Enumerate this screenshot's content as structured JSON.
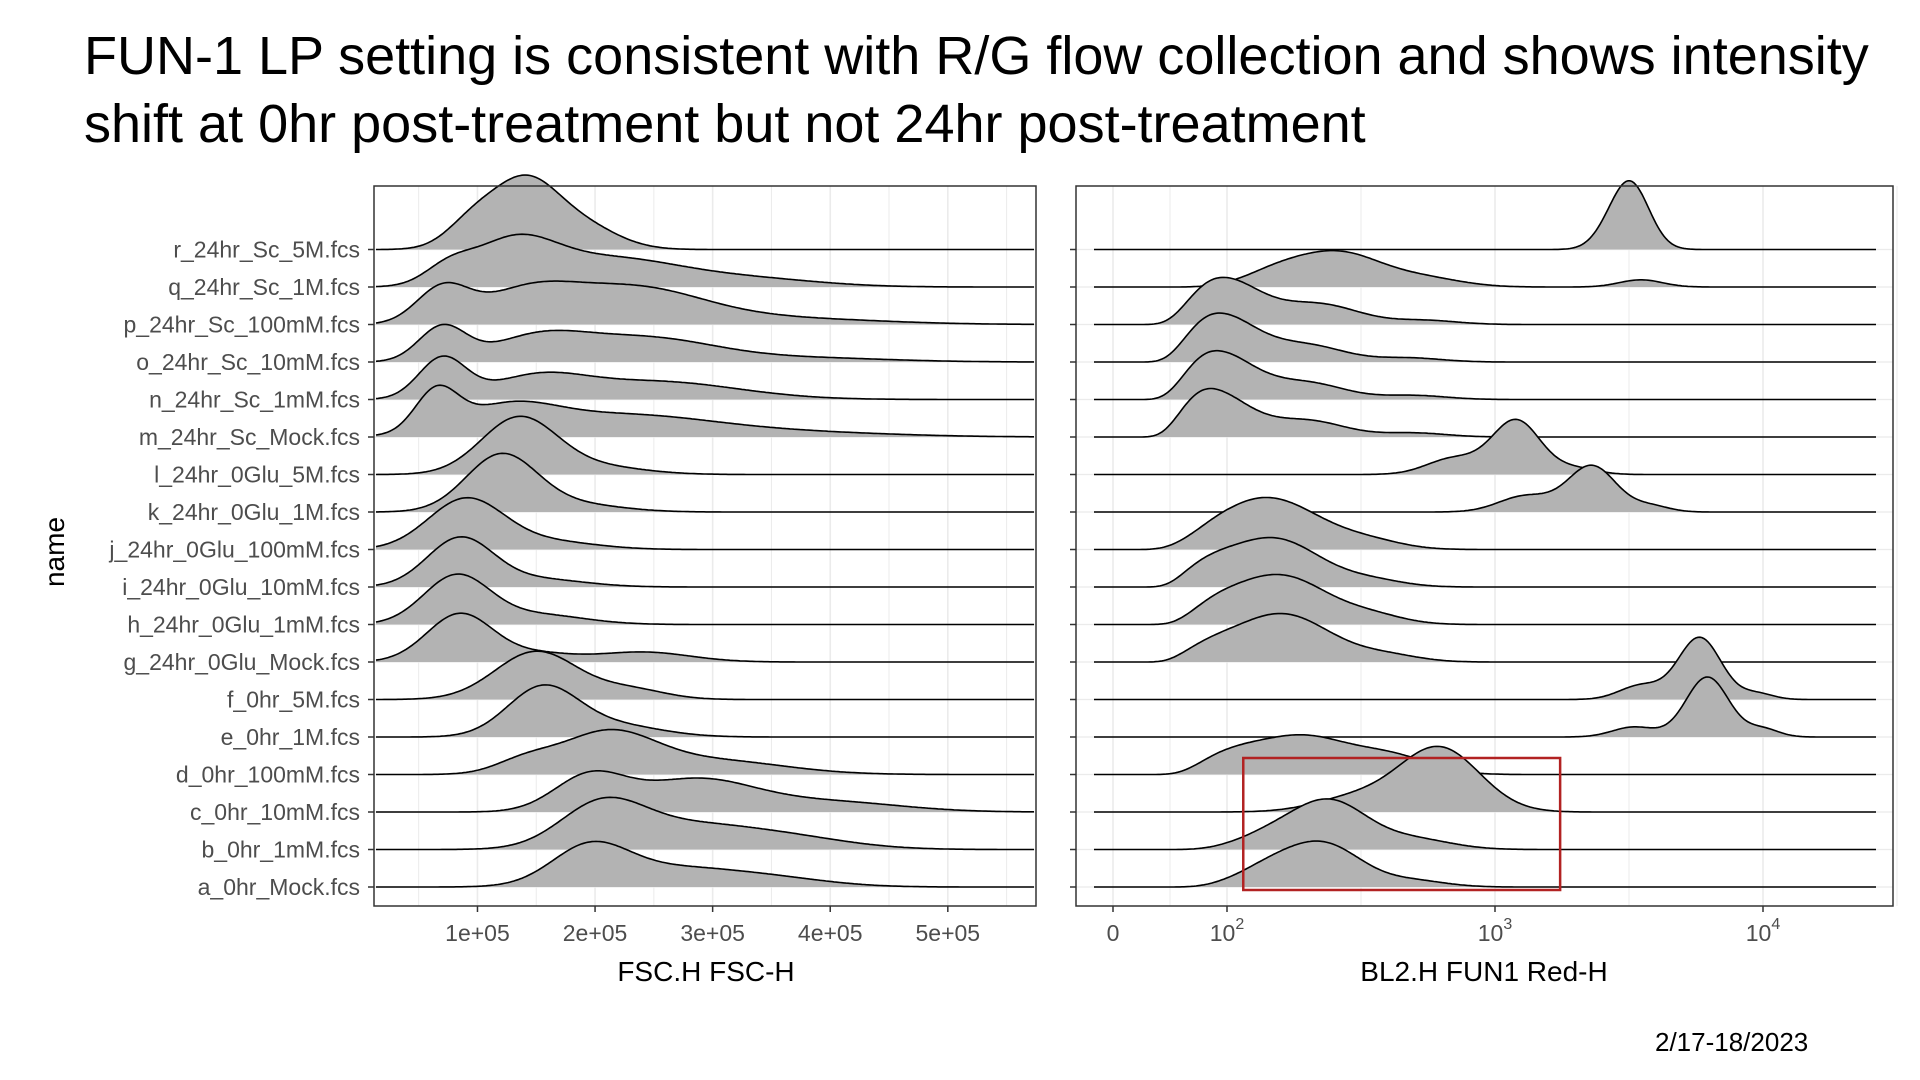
{
  "slide": {
    "title": "FUN-1 LP setting is consistent with R/G flow collection and shows intensity shift at 0hr post-treatment but not 24hr post-treatment",
    "date": "2/17-18/2023"
  },
  "colors": {
    "ridge_fill": "#b3b3b3",
    "ridge_line": "#000000",
    "grid": "#ebebeb",
    "panel_border": "#333333",
    "highlight_box": "#b22222"
  },
  "chart_data": [
    {
      "type": "ridgeline",
      "xlabel": "FSC.H FSC-H",
      "ylabel": "name",
      "x_ticks": [
        "1e+05",
        "2e+05",
        "3e+05",
        "4e+05",
        "5e+05"
      ],
      "x_tick_values": [
        100000,
        200000,
        300000,
        400000,
        500000
      ],
      "xlim": [
        12000,
        575000
      ],
      "categories": [
        "a_0hr_Mock.fcs",
        "b_0hr_1mM.fcs",
        "c_0hr_10mM.fcs",
        "d_0hr_100mM.fcs",
        "e_0hr_1M.fcs",
        "f_0hr_5M.fcs",
        "g_24hr_0Glu_Mock.fcs",
        "h_24hr_0Glu_1mM.fcs",
        "i_24hr_0Glu_10mM.fcs",
        "j_24hr_0Glu_100mM.fcs",
        "k_24hr_0Glu_1M.fcs",
        "l_24hr_0Glu_5M.fcs",
        "m_24hr_Sc_Mock.fcs",
        "n_24hr_Sc_1mM.fcs",
        "o_24hr_Sc_10mM.fcs",
        "p_24hr_Sc_100mM.fcs",
        "q_24hr_Sc_1M.fcs",
        "r_24hr_Sc_5M.fcs"
      ],
      "series": [
        {
          "peaks": [
            [
              195000,
              32000,
              0.9
            ],
            [
              260000,
              55000,
              0.45
            ],
            [
              350000,
              50000,
              0.2
            ]
          ]
        },
        {
          "peaks": [
            [
              205000,
              35000,
              1.0
            ],
            [
              270000,
              55000,
              0.55
            ],
            [
              360000,
              55000,
              0.3
            ]
          ]
        },
        {
          "peaks": [
            [
              195000,
              30000,
              0.85
            ],
            [
              285000,
              50000,
              0.8
            ],
            [
              400000,
              60000,
              0.25
            ]
          ]
        },
        {
          "peaks": [
            [
              140000,
              25000,
              0.3
            ],
            [
              210000,
              40000,
              1.0
            ],
            [
              300000,
              60000,
              0.35
            ]
          ]
        },
        {
          "peaks": [
            [
              155000,
              30000,
              1.2
            ],
            [
              215000,
              40000,
              0.3
            ]
          ]
        },
        {
          "peaks": [
            [
              150000,
              35000,
              1.2
            ],
            [
              230000,
              30000,
              0.25
            ]
          ]
        },
        {
          "peaks": [
            [
              85000,
              28000,
              1.2
            ],
            [
              150000,
              30000,
              0.2
            ],
            [
              240000,
              40000,
              0.25
            ]
          ]
        },
        {
          "peaks": [
            [
              82000,
              28000,
              1.2
            ],
            [
              150000,
              40000,
              0.25
            ]
          ]
        },
        {
          "peaks": [
            [
              85000,
              28000,
              1.2
            ],
            [
              150000,
              40000,
              0.2
            ]
          ]
        },
        {
          "peaks": [
            [
              90000,
              32000,
              1.25
            ],
            [
              160000,
              40000,
              0.2
            ]
          ]
        },
        {
          "peaks": [
            [
              120000,
              30000,
              1.4
            ],
            [
              180000,
              40000,
              0.2
            ]
          ]
        },
        {
          "peaks": [
            [
              135000,
              32000,
              1.4
            ],
            [
              200000,
              40000,
              0.2
            ]
          ]
        },
        {
          "peaks": [
            [
              65000,
              18000,
              1.0
            ],
            [
              125000,
              40000,
              0.6
            ],
            [
              220000,
              80000,
              0.55
            ],
            [
              380000,
              80000,
              0.1
            ]
          ]
        },
        {
          "peaks": [
            [
              70000,
              20000,
              1.0
            ],
            [
              150000,
              40000,
              0.5
            ],
            [
              250000,
              70000,
              0.45
            ]
          ]
        },
        {
          "peaks": [
            [
              70000,
              20000,
              0.85
            ],
            [
              150000,
              40000,
              0.55
            ],
            [
              240000,
              60000,
              0.6
            ],
            [
              380000,
              70000,
              0.1
            ]
          ]
        },
        {
          "peaks": [
            [
              70000,
              22000,
              0.85
            ],
            [
              140000,
              40000,
              0.7
            ],
            [
              230000,
              60000,
              0.9
            ],
            [
              360000,
              80000,
              0.15
            ]
          ]
        },
        {
          "peaks": [
            [
              75000,
              20000,
              0.4
            ],
            [
              130000,
              35000,
              1.0
            ],
            [
              210000,
              60000,
              0.7
            ],
            [
              330000,
              60000,
              0.2
            ]
          ]
        },
        {
          "peaks": [
            [
              95000,
              22000,
              0.6
            ],
            [
              140000,
              28000,
              1.65
            ],
            [
              190000,
              30000,
              0.55
            ]
          ]
        }
      ]
    },
    {
      "type": "ridgeline",
      "xlabel": "BL2.H FUN1 Red-H",
      "x_scale": "log (with 0)",
      "x_ticks": [
        {
          "value": 0,
          "base": "0",
          "exp": ""
        },
        {
          "value": 100,
          "base": "10",
          "exp": "2"
        },
        {
          "value": 1000,
          "base": "10",
          "exp": "3"
        },
        {
          "value": 10000,
          "base": "10",
          "exp": "4"
        }
      ],
      "xlim": [
        0,
        30000
      ],
      "series": [
        {
          "peaks": [
            [
              230,
              0.14,
              1.05
            ],
            [
              140,
              0.12,
              0.4
            ],
            [
              500,
              0.12,
              0.15
            ]
          ]
        },
        {
          "peaks": [
            [
              240,
              0.14,
              1.2
            ],
            [
              140,
              0.12,
              0.3
            ],
            [
              500,
              0.14,
              0.25
            ]
          ]
        },
        {
          "peaks": [
            [
              620,
              0.15,
              1.6
            ],
            [
              300,
              0.15,
              0.35
            ]
          ]
        },
        {
          "peaks": [
            [
              190,
              0.18,
              0.95
            ],
            [
              420,
              0.14,
              0.4
            ],
            [
              100,
              0.12,
              0.35
            ]
          ]
        },
        {
          "peaks": [
            [
              6200,
              0.08,
              1.5
            ],
            [
              3300,
              0.08,
              0.25
            ],
            [
              10000,
              0.06,
              0.2
            ]
          ]
        },
        {
          "peaks": [
            [
              5800,
              0.08,
              1.55
            ],
            [
              3500,
              0.08,
              0.35
            ],
            [
              9500,
              0.06,
              0.15
            ]
          ]
        },
        {
          "peaks": [
            [
              160,
              0.18,
              1.2
            ],
            [
              80,
              0.12,
              0.25
            ],
            [
              400,
              0.12,
              0.15
            ]
          ]
        },
        {
          "peaks": [
            [
              160,
              0.17,
              1.2
            ],
            [
              90,
              0.12,
              0.35
            ],
            [
              350,
              0.12,
              0.2
            ]
          ]
        },
        {
          "peaks": [
            [
              150,
              0.17,
              1.2
            ],
            [
              80,
              0.12,
              0.4
            ],
            [
              350,
              0.12,
              0.15
            ]
          ]
        },
        {
          "peaks": [
            [
              140,
              0.2,
              1.3
            ],
            [
              350,
              0.12,
              0.15
            ]
          ]
        },
        {
          "peaks": [
            [
              2300,
              0.09,
              1.15
            ],
            [
              1300,
              0.1,
              0.4
            ],
            [
              3800,
              0.07,
              0.15
            ]
          ]
        },
        {
          "peaks": [
            [
              1200,
              0.09,
              1.35
            ],
            [
              700,
              0.1,
              0.4
            ],
            [
              2000,
              0.08,
              0.15
            ]
          ]
        },
        {
          "peaks": [
            [
              85,
              0.14,
              1.2
            ],
            [
              200,
              0.14,
              0.4
            ],
            [
              500,
              0.12,
              0.1
            ]
          ]
        },
        {
          "peaks": [
            [
              90,
              0.14,
              1.2
            ],
            [
              200,
              0.14,
              0.4
            ],
            [
              500,
              0.12,
              0.1
            ]
          ]
        },
        {
          "peaks": [
            [
              92,
              0.14,
              1.2
            ],
            [
              200,
              0.14,
              0.4
            ],
            [
              480,
              0.12,
              0.1
            ]
          ]
        },
        {
          "peaks": [
            [
              95,
              0.14,
              1.15
            ],
            [
              220,
              0.15,
              0.5
            ],
            [
              550,
              0.12,
              0.1
            ]
          ]
        },
        {
          "peaks": [
            [
              260,
              0.16,
              0.85
            ],
            [
              150,
              0.12,
              0.3
            ],
            [
              550,
              0.14,
              0.2
            ],
            [
              3500,
              0.08,
              0.18
            ]
          ]
        },
        {
          "peaks": [
            [
              3200,
              0.07,
              1.65
            ],
            [
              2600,
              0.06,
              0.2
            ]
          ]
        }
      ],
      "annotation": {
        "type": "box",
        "x_range": [
          115,
          1750
        ],
        "rows": "a-c",
        "color": "#b22222"
      }
    }
  ]
}
